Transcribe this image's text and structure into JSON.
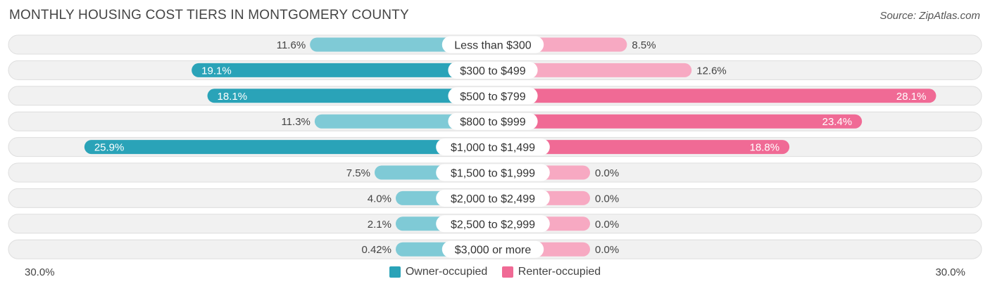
{
  "header": {
    "title": "MONTHLY HOUSING COST TIERS IN MONTGOMERY COUNTY",
    "source": "Source: ZipAtlas.com"
  },
  "axis": {
    "left_label": "30.0%",
    "right_label": "30.0%"
  },
  "legend": {
    "owner_label": "Owner-occupied",
    "renter_label": "Renter-occupied"
  },
  "colors": {
    "owner_strong": "#2aa3b8",
    "owner_light": "#7fcad6",
    "renter_strong": "#f06a95",
    "renter_light": "#f7a9c2",
    "row_bg": "#f1f1f1",
    "row_border": "#dedede"
  },
  "chart_data": {
    "type": "bar",
    "orientation": "diverging-horizontal",
    "xlim": [
      -30,
      30
    ],
    "categories": [
      "Less than $300",
      "$300 to $499",
      "$500 to $799",
      "$800 to $999",
      "$1,000 to $1,499",
      "$1,500 to $1,999",
      "$2,000 to $2,499",
      "$2,500 to $2,999",
      "$3,000 or more"
    ],
    "series": [
      {
        "name": "Owner-occupied",
        "values": [
          11.6,
          19.1,
          18.1,
          11.3,
          25.9,
          7.5,
          4.0,
          2.1,
          0.42
        ],
        "labels": [
          "11.6%",
          "19.1%",
          "18.1%",
          "11.3%",
          "25.9%",
          "7.5%",
          "4.0%",
          "2.1%",
          "0.42%"
        ]
      },
      {
        "name": "Renter-occupied",
        "values": [
          8.5,
          12.6,
          28.1,
          23.4,
          18.8,
          0.0,
          0.0,
          0.0,
          0.0
        ],
        "labels": [
          "8.5%",
          "12.6%",
          "28.1%",
          "23.4%",
          "18.8%",
          "0.0%",
          "0.0%",
          "0.0%",
          "0.0%"
        ]
      }
    ]
  }
}
